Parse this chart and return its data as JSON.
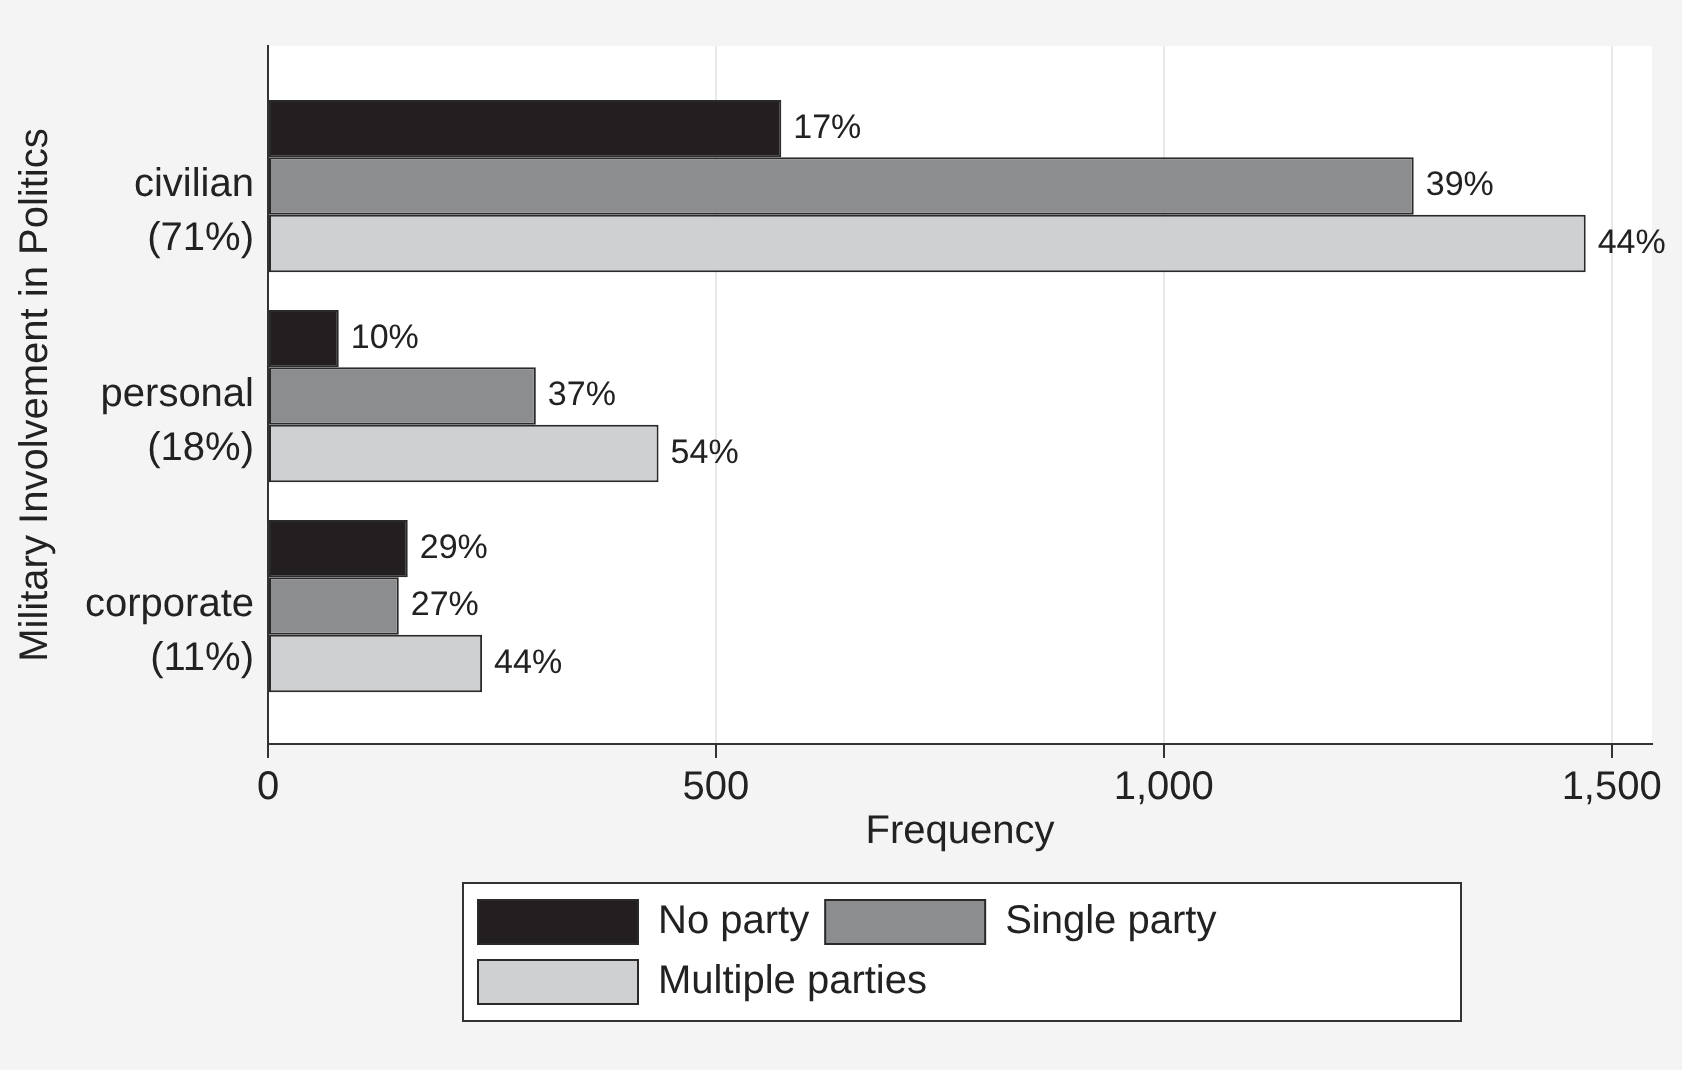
{
  "chart_data": {
    "type": "bar",
    "orientation": "horizontal",
    "categories": [
      "civilian (71%)",
      "personal (18%)",
      "corporate (11%)"
    ],
    "series": [
      {
        "name": "No party",
        "color": "#231f20",
        "values": [
          573,
          79,
          156
        ]
      },
      {
        "name": "Single party",
        "color": "#8c8d8f",
        "values": [
          1279,
          299,
          146
        ]
      },
      {
        "name": "Multiple parties",
        "color": "#cfd0d2",
        "values": [
          1471,
          436,
          239
        ]
      }
    ],
    "annotations": [
      "17%",
      "39%",
      "44%",
      "10%",
      "37%",
      "54%",
      "29%",
      "27%",
      "44%"
    ],
    "xlim": [
      0,
      1545
    ],
    "xticks": [
      0,
      500,
      {
        "value": 1000,
        "label": "1,000"
      },
      {
        "value": 1500,
        "label": "1,500"
      }
    ],
    "xlabel": "Frequency",
    "ylabel": "Military Involvement in Politics",
    "grid": "x",
    "legend": "bottom"
  }
}
